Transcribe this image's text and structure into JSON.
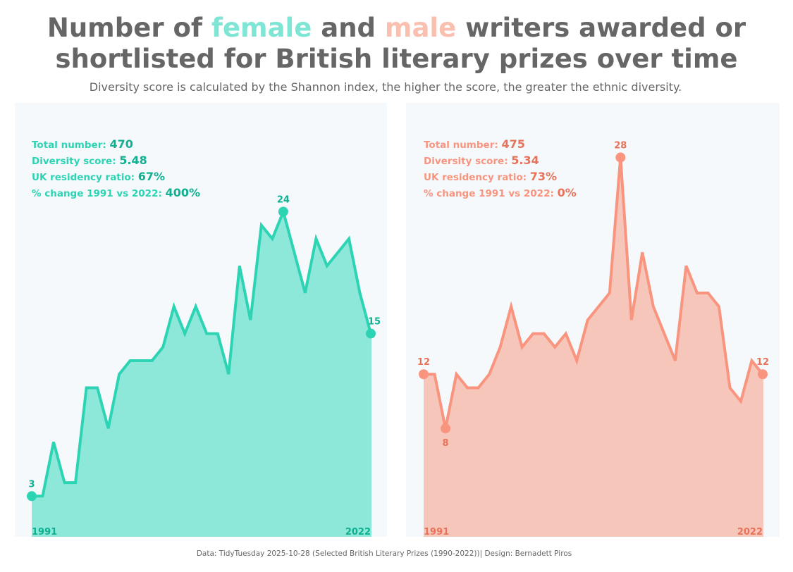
{
  "header": {
    "title_part1": "Number of ",
    "title_female": "female",
    "title_part2": " and ",
    "title_male": "male",
    "title_part3": " writers awarded or",
    "title_line2": "shortlisted for British literary prizes over time",
    "subtitle": "Diversity score is calculated by the Shannon index, the higher the score, the greater the ethnic diversity."
  },
  "caption": "Data: TidyTuesday 2025-10-28 (Selected British Literary Prizes (1990-2022))| Design: Bernadett Piros",
  "colors": {
    "female_line": "#2dd4b4",
    "female_fill": "#8ee8da",
    "female_text_label": "#2dd4b4",
    "female_text_value": "#10b090",
    "male_line": "#f9957f",
    "male_fill": "#f7c6bb",
    "male_text_label": "#f9957f",
    "male_text_value": "#e8735a",
    "panel_bg": "#f5f9fc"
  },
  "chart_data": [
    {
      "type": "area",
      "id": "female",
      "x": [
        1991,
        1992,
        1993,
        1994,
        1995,
        1996,
        1997,
        1998,
        1999,
        2000,
        2001,
        2002,
        2003,
        2004,
        2005,
        2006,
        2007,
        2008,
        2009,
        2010,
        2011,
        2012,
        2013,
        2014,
        2015,
        2016,
        2017,
        2018,
        2019,
        2020,
        2021,
        2022
      ],
      "values": [
        3,
        3,
        7,
        4,
        4,
        11,
        11,
        8,
        12,
        13,
        13,
        13,
        14,
        17,
        15,
        17,
        15,
        15,
        12,
        20,
        16,
        23,
        22,
        24,
        21,
        18,
        22,
        20,
        21,
        22,
        18,
        15
      ],
      "stats": [
        {
          "label": "Total number: ",
          "value": "470"
        },
        {
          "label": "Diversity score: ",
          "value": "5.48"
        },
        {
          "label": "UK residency ratio: ",
          "value": "67%"
        },
        {
          "label": "% change 1991 vs 2022: ",
          "value": "400%"
        }
      ],
      "point_labels": [
        {
          "index": 0,
          "text": "3",
          "pos": "above"
        },
        {
          "index": 23,
          "text": "24",
          "pos": "above"
        },
        {
          "index": 31,
          "text": "15",
          "pos": "above-right"
        }
      ],
      "x_start_label": "1991",
      "x_end_label": "2022",
      "ylim": [
        0,
        29
      ]
    },
    {
      "type": "area",
      "id": "male",
      "x": [
        1991,
        1992,
        1993,
        1994,
        1995,
        1996,
        1997,
        1998,
        1999,
        2000,
        2001,
        2002,
        2003,
        2004,
        2005,
        2006,
        2007,
        2008,
        2009,
        2010,
        2011,
        2012,
        2013,
        2014,
        2015,
        2016,
        2017,
        2018,
        2019,
        2020,
        2021,
        2022
      ],
      "values": [
        12,
        12,
        8,
        12,
        11,
        11,
        12,
        14,
        17,
        14,
        15,
        15,
        14,
        15,
        13,
        16,
        17,
        18,
        28,
        16,
        21,
        17,
        15,
        13,
        20,
        18,
        18,
        17,
        11,
        10,
        13,
        12
      ],
      "stats": [
        {
          "label": "Total number: ",
          "value": "475"
        },
        {
          "label": "Diversity score: ",
          "value": "5.34"
        },
        {
          "label": "UK residency ratio: ",
          "value": "73%"
        },
        {
          "label": "% change 1991 vs 2022: ",
          "value": "0%"
        }
      ],
      "point_labels": [
        {
          "index": 0,
          "text": "12",
          "pos": "above"
        },
        {
          "index": 2,
          "text": "8",
          "pos": "below"
        },
        {
          "index": 18,
          "text": "28",
          "pos": "above"
        },
        {
          "index": 31,
          "text": "12",
          "pos": "above"
        }
      ],
      "x_start_label": "1991",
      "x_end_label": "2022",
      "ylim": [
        0,
        29
      ]
    }
  ]
}
